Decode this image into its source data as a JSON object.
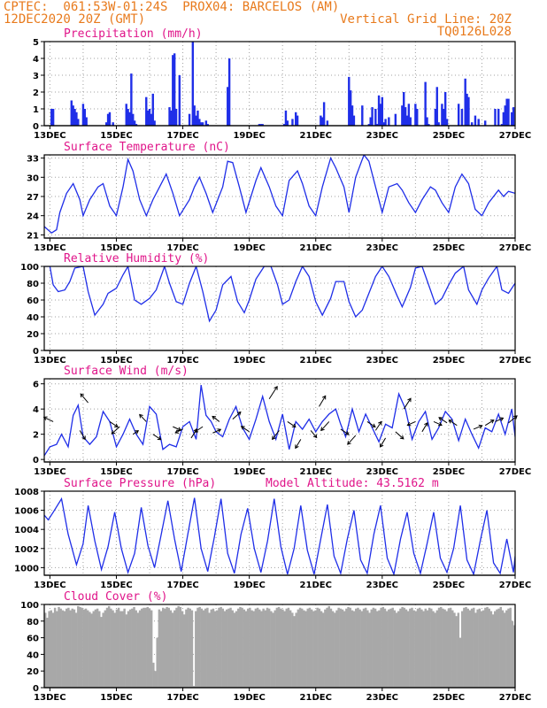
{
  "header": {
    "org_location": "CPTEC:  061:53W-01:24S  PROX04: BARCELOS (AM)",
    "datetime": "12DEC2020 20Z (GMT)",
    "grid_note": "Vertical Grid Line: 20Z",
    "code": "TQ0126L028"
  },
  "colors": {
    "header": "#e87a1c",
    "title": "#e0158a",
    "series": "#1f2ee8",
    "cloud": "#a8a8a8",
    "grid": "#a0a0a0"
  },
  "x_ticks": [
    "13DEC",
    "15DEC",
    "17DEC",
    "19DEC",
    "21DEC",
    "23DEC",
    "25DEC",
    "27DEC"
  ],
  "chart_data": [
    {
      "type": "bar",
      "title": "Precipitation (mm/h)",
      "ylim": [
        0,
        5
      ],
      "yticks": [
        0,
        1,
        2,
        3,
        4,
        5
      ],
      "xlim": [
        12.83,
        27.0
      ],
      "x": [
        13.05,
        13.1,
        13.65,
        13.7,
        13.75,
        13.8,
        13.85,
        14.0,
        14.05,
        14.1,
        14.7,
        14.75,
        14.8,
        14.9,
        15.3,
        15.35,
        15.4,
        15.45,
        15.5,
        15.55,
        15.6,
        15.9,
        15.95,
        16.0,
        16.05,
        16.1,
        16.15,
        16.6,
        16.65,
        16.7,
        16.75,
        16.8,
        16.9,
        17.2,
        17.3,
        17.35,
        17.4,
        17.45,
        17.5,
        17.55,
        17.6,
        17.7,
        17.75,
        18.35,
        18.4,
        19.3,
        19.35,
        19.4,
        20.05,
        20.1,
        20.15,
        20.3,
        20.4,
        20.45,
        21.15,
        21.2,
        21.25,
        21.35,
        22.0,
        22.05,
        22.1,
        22.15,
        22.4,
        22.6,
        22.65,
        22.7,
        22.8,
        22.85,
        22.9,
        22.95,
        23.0,
        23.05,
        23.1,
        23.2,
        23.4,
        23.6,
        23.65,
        23.7,
        23.75,
        23.8,
        23.85,
        24.0,
        24.05,
        24.3,
        24.35,
        24.4,
        24.6,
        24.65,
        24.7,
        24.8,
        24.85,
        24.9,
        24.95,
        25.3,
        25.4,
        25.5,
        25.55,
        25.6,
        25.7,
        25.8,
        25.9,
        26.1,
        26.4,
        26.5,
        26.6,
        26.65,
        26.7,
        26.75,
        26.8,
        26.9,
        26.95
      ],
      "values": [
        1.0,
        1.0,
        1.5,
        1.2,
        1.0,
        0.8,
        0.4,
        1.3,
        1.0,
        0.5,
        0.2,
        0.7,
        0.8,
        0.2,
        1.3,
        1.0,
        0.8,
        3.1,
        0.7,
        0.3,
        0.1,
        1.7,
        0.9,
        1.0,
        0.7,
        1.9,
        0.3,
        1.1,
        0.9,
        4.2,
        4.3,
        1.0,
        3.0,
        0.7,
        5.0,
        1.2,
        0.6,
        0.9,
        0.4,
        0.2,
        0.2,
        0.3,
        0.1,
        2.3,
        4.0,
        0.1,
        0.1,
        0.1,
        0.1,
        0.9,
        0.3,
        0.4,
        0.8,
        0.6,
        0.6,
        0.5,
        1.4,
        0.3,
        2.9,
        2.1,
        1.2,
        0.6,
        1.2,
        0.1,
        0.5,
        1.1,
        1.0,
        0.1,
        1.8,
        1.3,
        1.7,
        0.2,
        0.4,
        0.5,
        0.7,
        1.2,
        2.0,
        1.1,
        0.6,
        1.3,
        0.5,
        1.3,
        1.0,
        2.6,
        0.5,
        0.1,
        1.0,
        2.3,
        0.2,
        1.3,
        1.0,
        2.0,
        0.4,
        1.3,
        1.0,
        2.8,
        1.9,
        1.7,
        0.2,
        0.6,
        0.4,
        0.3,
        1.0,
        1.0,
        0.1,
        0.8,
        1.2,
        1.6,
        1.6,
        0.8,
        1.1
      ]
    },
    {
      "type": "line",
      "title": "Surface Temperature (nC)",
      "ylim": [
        20.5,
        33.5
      ],
      "yticks": [
        21,
        24,
        27,
        30,
        33
      ],
      "xlim": [
        12.83,
        27.0
      ],
      "x": [
        12.83,
        13.05,
        13.2,
        13.3,
        13.5,
        13.7,
        13.9,
        14.0,
        14.2,
        14.45,
        14.6,
        14.8,
        15.0,
        15.2,
        15.35,
        15.5,
        15.7,
        15.9,
        16.1,
        16.3,
        16.5,
        16.7,
        16.9,
        17.2,
        17.35,
        17.5,
        17.7,
        17.9,
        18.2,
        18.35,
        18.5,
        18.7,
        18.9,
        19.2,
        19.35,
        19.6,
        19.8,
        20.0,
        20.2,
        20.45,
        20.6,
        20.8,
        21.0,
        21.2,
        21.45,
        21.6,
        21.85,
        22.0,
        22.2,
        22.45,
        22.6,
        22.8,
        23.0,
        23.2,
        23.45,
        23.6,
        23.8,
        24.0,
        24.2,
        24.45,
        24.6,
        24.8,
        25.0,
        25.2,
        25.4,
        25.6,
        25.8,
        26.0,
        26.2,
        26.5,
        26.65,
        26.8,
        27.0
      ],
      "values": [
        22.3,
        21.3,
        21.8,
        24.5,
        27.5,
        29.0,
        26.5,
        24.0,
        26.5,
        28.5,
        29.0,
        25.5,
        24.0,
        28.5,
        32.8,
        31.0,
        26.5,
        24.0,
        26.5,
        28.5,
        30.5,
        27.5,
        24.0,
        26.5,
        28.5,
        30.0,
        27.5,
        24.5,
        28.5,
        32.5,
        32.3,
        28.5,
        24.5,
        29.5,
        31.5,
        28.5,
        25.5,
        24.0,
        29.5,
        31.0,
        29.0,
        25.5,
        24.0,
        28.5,
        33.0,
        31.5,
        28.5,
        24.5,
        30.0,
        33.5,
        32.5,
        28.5,
        24.5,
        28.5,
        29.0,
        28.0,
        26.0,
        24.5,
        26.5,
        28.5,
        28.0,
        26.0,
        24.5,
        28.5,
        30.5,
        29.0,
        25.0,
        24.0,
        26.0,
        28.0,
        27.0,
        27.8,
        27.5
      ]
    },
    {
      "type": "line",
      "title": "Relative Humidity (%)",
      "ylim": [
        0,
        100
      ],
      "yticks": [
        0,
        20,
        40,
        60,
        80,
        100
      ],
      "xlim": [
        12.83,
        27.0
      ],
      "x": [
        12.83,
        13.0,
        13.1,
        13.25,
        13.45,
        13.6,
        13.75,
        14.0,
        14.15,
        14.35,
        14.6,
        14.75,
        15.0,
        15.2,
        15.35,
        15.55,
        15.75,
        16.0,
        16.2,
        16.45,
        16.6,
        16.8,
        17.0,
        17.2,
        17.4,
        17.6,
        17.8,
        18.0,
        18.2,
        18.45,
        18.65,
        18.85,
        19.0,
        19.2,
        19.45,
        19.65,
        19.85,
        20.0,
        20.2,
        20.4,
        20.6,
        20.8,
        21.0,
        21.2,
        21.45,
        21.6,
        21.85,
        22.0,
        22.2,
        22.4,
        22.6,
        22.8,
        23.0,
        23.2,
        23.45,
        23.6,
        23.85,
        24.0,
        24.2,
        24.45,
        24.6,
        24.8,
        25.0,
        25.2,
        25.45,
        25.6,
        25.85,
        26.0,
        26.2,
        26.45,
        26.6,
        26.8,
        27.0
      ],
      "values": [
        100,
        100,
        78,
        70,
        72,
        82,
        98,
        100,
        70,
        42,
        55,
        68,
        74,
        90,
        100,
        60,
        55,
        62,
        72,
        100,
        80,
        58,
        55,
        80,
        100,
        70,
        35,
        48,
        78,
        88,
        58,
        45,
        60,
        85,
        100,
        100,
        78,
        55,
        60,
        82,
        100,
        88,
        58,
        42,
        62,
        82,
        82,
        58,
        40,
        48,
        68,
        88,
        100,
        88,
        65,
        52,
        75,
        98,
        100,
        72,
        55,
        62,
        78,
        92,
        100,
        72,
        55,
        72,
        86,
        100,
        72,
        68,
        80
      ]
    },
    {
      "type": "line",
      "title": "Surface Wind (m/s)",
      "ylim": [
        -0.2,
        6.4
      ],
      "yticks": [
        0,
        2,
        4,
        6
      ],
      "xlim": [
        12.83,
        27.0
      ],
      "x": [
        12.83,
        13.0,
        13.2,
        13.35,
        13.55,
        13.7,
        13.85,
        14.0,
        14.2,
        14.4,
        14.6,
        14.8,
        15.0,
        15.2,
        15.4,
        15.6,
        15.8,
        16.0,
        16.2,
        16.4,
        16.6,
        16.8,
        17.0,
        17.2,
        17.4,
        17.55,
        17.7,
        17.85,
        18.0,
        18.2,
        18.4,
        18.6,
        18.8,
        19.0,
        19.2,
        19.4,
        19.6,
        19.8,
        20.0,
        20.2,
        20.4,
        20.6,
        20.8,
        21.0,
        21.2,
        21.4,
        21.6,
        21.75,
        21.9,
        22.1,
        22.3,
        22.5,
        22.7,
        22.9,
        23.1,
        23.3,
        23.5,
        23.7,
        23.9,
        24.1,
        24.3,
        24.5,
        24.7,
        24.9,
        25.1,
        25.3,
        25.5,
        25.7,
        25.9,
        26.1,
        26.3,
        26.5,
        26.7,
        26.9,
        27.0
      ],
      "values": [
        0.3,
        1.0,
        1.2,
        2.0,
        1.0,
        3.5,
        4.3,
        1.8,
        1.2,
        1.8,
        3.8,
        3.0,
        1.0,
        2.0,
        3.2,
        2.0,
        1.2,
        4.2,
        3.6,
        0.8,
        1.2,
        1.0,
        2.6,
        3.0,
        1.6,
        5.9,
        3.5,
        3.0,
        2.2,
        1.8,
        3.2,
        4.2,
        2.5,
        1.6,
        3.2,
        5.0,
        3.0,
        1.6,
        3.6,
        0.8,
        3.0,
        2.4,
        3.2,
        2.2,
        3.0,
        3.6,
        4.0,
        2.8,
        1.8,
        4.0,
        2.2,
        3.6,
        2.5,
        1.4,
        2.8,
        2.5,
        5.2,
        4.0,
        1.6,
        3.0,
        3.8,
        1.6,
        2.5,
        3.8,
        3.2,
        1.5,
        3.2,
        2.0,
        0.9,
        2.5,
        2.2,
        3.6,
        2.0,
        4.0,
        1.8
      ]
    },
    {
      "type": "line",
      "title": "Surface Pressure (hPa)",
      "annotation": "Model Altitude: 43.5162 m",
      "ylim": [
        999.2,
        1008.0
      ],
      "yticks": [
        1000,
        1002,
        1004,
        1006,
        1008
      ],
      "xlim": [
        12.83,
        27.0
      ],
      "x": [
        12.83,
        12.95,
        13.1,
        13.35,
        13.55,
        13.8,
        14.0,
        14.15,
        14.35,
        14.55,
        14.75,
        14.95,
        15.15,
        15.35,
        15.55,
        15.75,
        15.95,
        16.15,
        16.35,
        16.55,
        16.75,
        16.95,
        17.15,
        17.35,
        17.55,
        17.75,
        17.95,
        18.15,
        18.35,
        18.55,
        18.75,
        18.95,
        19.15,
        19.35,
        19.55,
        19.75,
        19.95,
        20.15,
        20.35,
        20.55,
        20.75,
        20.95,
        21.15,
        21.35,
        21.55,
        21.75,
        21.95,
        22.15,
        22.35,
        22.55,
        22.75,
        22.95,
        23.15,
        23.35,
        23.55,
        23.75,
        23.95,
        24.15,
        24.35,
        24.55,
        24.75,
        24.95,
        25.15,
        25.35,
        25.55,
        25.75,
        25.95,
        26.15,
        26.35,
        26.55,
        26.75,
        26.95,
        27.0
      ],
      "values": [
        1005.5,
        1005.0,
        1005.8,
        1007.2,
        1003.5,
        1000.3,
        1002.5,
        1006.5,
        1002.8,
        999.8,
        1002.2,
        1005.8,
        1002.0,
        999.5,
        1001.5,
        1006.3,
        1002.3,
        1000.0,
        1003.5,
        1007.0,
        1003.0,
        999.6,
        1003.5,
        1007.3,
        1002.0,
        999.6,
        1003.2,
        1007.2,
        1001.5,
        999.4,
        1003.5,
        1006.2,
        1002.0,
        999.5,
        1002.8,
        1007.2,
        1002.2,
        999.3,
        1002.0,
        1006.5,
        1001.8,
        999.3,
        1003.0,
        1006.6,
        1001.2,
        999.4,
        1003.0,
        1006.0,
        1000.8,
        999.4,
        1003.5,
        1006.5,
        1001.0,
        999.3,
        1003.0,
        1005.8,
        1001.5,
        999.4,
        1002.5,
        1005.8,
        1001.0,
        999.5,
        1002.0,
        1006.5,
        1000.8,
        999.3,
        1002.8,
        1006.0,
        1000.5,
        999.4,
        1003.0,
        999.5,
        1001.2
      ]
    },
    {
      "type": "bar",
      "title": "Cloud Cover (%)",
      "ylim": [
        0,
        100
      ],
      "yticks": [
        0,
        20,
        40,
        60,
        80,
        100
      ],
      "xlim": [
        12.83,
        27.0
      ],
      "values": [
        90,
        84,
        92,
        93,
        90,
        96,
        92,
        97,
        95,
        93,
        92,
        95,
        96,
        93,
        95,
        94,
        90,
        98,
        97,
        96,
        94,
        95,
        93,
        91,
        89,
        92,
        94,
        95,
        92,
        85,
        90,
        93,
        96,
        98,
        95,
        93,
        90,
        94,
        96,
        92,
        92,
        95,
        88,
        92,
        94,
        95,
        97,
        93,
        90,
        93,
        95,
        96,
        96,
        97,
        95,
        93,
        30,
        20,
        60,
        94,
        92,
        96,
        95,
        97,
        96,
        93,
        90,
        93,
        96,
        98,
        97,
        92,
        88,
        94,
        96,
        95,
        93,
        2,
        92,
        96,
        97,
        95,
        93,
        95,
        96,
        90,
        94,
        95,
        92,
        93,
        96,
        97,
        95,
        92,
        94,
        95,
        96,
        93,
        90,
        92,
        95,
        97,
        96,
        94,
        92,
        95,
        96,
        93,
        92,
        95,
        96,
        94,
        92,
        95,
        93,
        96,
        95,
        92,
        90,
        93,
        96,
        97,
        95,
        94,
        92,
        95,
        96,
        93,
        90,
        86,
        90,
        94,
        96,
        95,
        93,
        92,
        95,
        96,
        94,
        92,
        93,
        96,
        95,
        92,
        90,
        94,
        96,
        98,
        95,
        92,
        90,
        93,
        96,
        95,
        94,
        92,
        95,
        97,
        96,
        93,
        92,
        95,
        96,
        94,
        92,
        95,
        96,
        93,
        90,
        94,
        96,
        95,
        92,
        93,
        96,
        97,
        95,
        92,
        94,
        95,
        96,
        93,
        90,
        92,
        95,
        97,
        96,
        94,
        92,
        95,
        96,
        93,
        92,
        95,
        96,
        94,
        92,
        95,
        93,
        96,
        95,
        92,
        90,
        93,
        96,
        97,
        95,
        94,
        92,
        95,
        96,
        93,
        90,
        86,
        90,
        60,
        92,
        96,
        97,
        95,
        93,
        95,
        96,
        90,
        94,
        95,
        92,
        93,
        96,
        97,
        95,
        92,
        88,
        92,
        94,
        95,
        97,
        93,
        90,
        93,
        95,
        96,
        80,
        75
      ]
    }
  ],
  "wind_arrows": {
    "x": [
      13.1,
      13.9,
      14.15,
      14.8,
      15.1,
      15.5,
      15.9,
      16.1,
      16.7,
      17.0,
      17.25,
      17.6,
      17.9,
      18.1,
      18.5,
      19.0,
      19.6,
      19.9,
      20.15,
      20.55,
      20.85,
      21.1,
      21.4,
      21.75,
      22.2,
      22.55,
      22.8,
      23.1,
      23.4,
      23.65,
      24.0,
      24.2,
      24.55,
      24.95,
      25.25,
      25.75,
      26.1,
      26.4,
      26.8
    ],
    "y": [
      3.0,
      2.3,
      4.5,
      3.0,
      2.6,
      2.0,
      3.0,
      2.0,
      2.6,
      2.4,
      1.7,
      2.6,
      2.1,
      3.0,
      3.2,
      2.2,
      4.8,
      2.3,
      3.0,
      1.6,
      2.3,
      4.2,
      3.0,
      2.4,
      1.9,
      3.0,
      2.3,
      1.7,
      2.2,
      4.0,
      3.0,
      2.2,
      3.0,
      2.9,
      2.7,
      2.4,
      2.7,
      3.0,
      2.9
    ],
    "dx": [
      -0.35,
      0.2,
      -0.28,
      0.3,
      -0.3,
      0.2,
      -0.25,
      0.3,
      0.3,
      -0.28,
      0.22,
      -0.3,
      0.3,
      -0.26,
      0.3,
      -0.3,
      0.3,
      -0.26,
      0.3,
      -0.2,
      0.22,
      0.24,
      -0.3,
      0.3,
      -0.3,
      0.3,
      0.22,
      -0.2,
      0.3,
      0.26,
      -0.3,
      0.2,
      0.3,
      -0.3,
      -0.3,
      0.32,
      0.32,
      0.3,
      0.32
    ],
    "dy": [
      0.25,
      -0.5,
      0.5,
      -0.3,
      -0.4,
      0.2,
      0.4,
      -0.3,
      -0.2,
      -0.2,
      0.5,
      -0.3,
      0.2,
      0.3,
      0.4,
      0.3,
      0.7,
      -0.5,
      -0.3,
      -0.5,
      -0.4,
      0.6,
      -0.5,
      -0.3,
      -0.5,
      -0.3,
      0.5,
      -0.5,
      -0.4,
      0.6,
      -0.2,
      0.5,
      -0.2,
      0.3,
      0.3,
      0.2,
      0.3,
      0.2,
      0.4
    ]
  }
}
